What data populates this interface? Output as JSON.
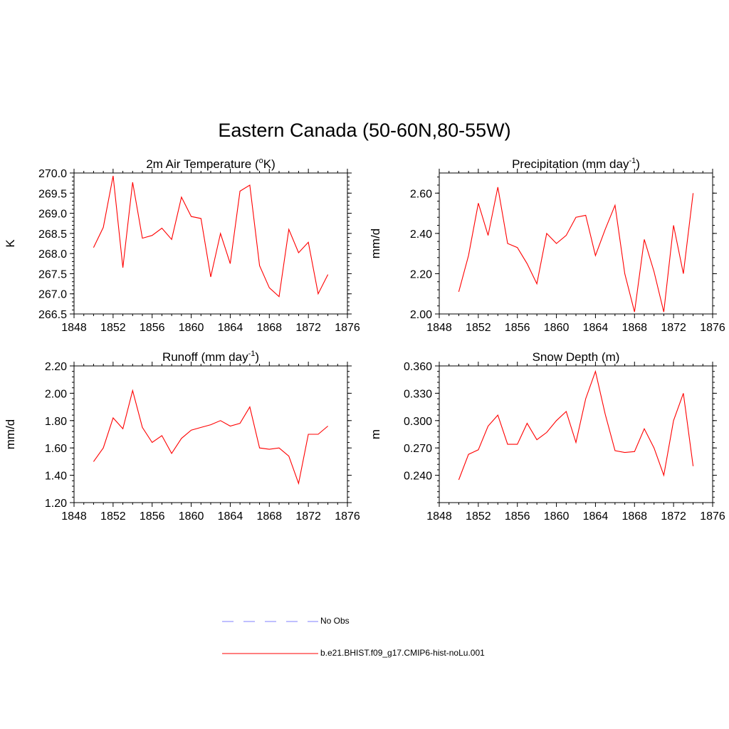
{
  "title": "Eastern Canada (50-60N,80-55W)",
  "colors": {
    "model_line": "#ff0000",
    "obs_line": "#9999ff",
    "axis": "#000000"
  },
  "legend": [
    {
      "label": "No Obs",
      "style": "dashed",
      "color": "#9999ff"
    },
    {
      "label": "b.e21.BHIST.f09_g17.CMIP6-hist-noLu.001",
      "style": "solid",
      "color": "#ff0000"
    }
  ],
  "chart_data": [
    {
      "type": "line",
      "title_main": "2m Air Temperature (",
      "title_sup": "o",
      "title_end": "K)",
      "ylabel": "K",
      "xlim": [
        1848,
        1876
      ],
      "ylim": [
        266.5,
        270.0
      ],
      "xticks": [
        1848,
        1852,
        1856,
        1860,
        1864,
        1868,
        1872,
        1876
      ],
      "yticks": [
        266.5,
        267.0,
        267.5,
        268.0,
        268.5,
        269.0,
        269.5,
        270.0
      ],
      "yticklabels": [
        "266.5",
        "267.0",
        "267.5",
        "268.0",
        "268.5",
        "269.0",
        "269.5",
        "270.0"
      ],
      "x": [
        1850,
        1851,
        1852,
        1853,
        1854,
        1855,
        1856,
        1857,
        1858,
        1859,
        1860,
        1861,
        1862,
        1863,
        1864,
        1865,
        1866,
        1867,
        1868,
        1869,
        1870,
        1871,
        1872,
        1873,
        1874
      ],
      "series": [
        {
          "values": [
            268.15,
            268.65,
            269.93,
            267.65,
            269.77,
            268.38,
            268.45,
            268.63,
            268.35,
            269.4,
            268.92,
            268.87,
            267.42,
            268.5,
            267.75,
            269.55,
            269.7,
            267.7,
            267.15,
            266.93,
            268.6,
            268.02,
            268.28,
            267.0,
            267.48
          ]
        }
      ]
    },
    {
      "type": "line",
      "title_main": "Precipitation (mm day",
      "title_sup": "-1",
      "title_end": ")",
      "ylabel": "mm/d",
      "xlim": [
        1848,
        1876
      ],
      "ylim": [
        2.0,
        2.7
      ],
      "xticks": [
        1848,
        1852,
        1856,
        1860,
        1864,
        1868,
        1872,
        1876
      ],
      "yticks": [
        2.0,
        2.2,
        2.4,
        2.6
      ],
      "yticklabels": [
        "2.00",
        "2.20",
        "2.40",
        "2.60"
      ],
      "x": [
        1850,
        1851,
        1852,
        1853,
        1854,
        1855,
        1856,
        1857,
        1858,
        1859,
        1860,
        1861,
        1862,
        1863,
        1864,
        1865,
        1866,
        1867,
        1868,
        1869,
        1870,
        1871,
        1872,
        1873,
        1874
      ],
      "series": [
        {
          "values": [
            2.11,
            2.29,
            2.55,
            2.39,
            2.63,
            2.35,
            2.33,
            2.25,
            2.15,
            2.4,
            2.35,
            2.39,
            2.48,
            2.49,
            2.29,
            2.42,
            2.54,
            2.2,
            2.01,
            2.37,
            2.21,
            2.01,
            2.44,
            2.2,
            2.6
          ]
        }
      ]
    },
    {
      "type": "line",
      "title_main": "Runoff (mm day",
      "title_sup": "-1",
      "title_end": ")",
      "ylabel": "mm/d",
      "xlim": [
        1848,
        1876
      ],
      "ylim": [
        1.2,
        2.2
      ],
      "xticks": [
        1848,
        1852,
        1856,
        1860,
        1864,
        1868,
        1872,
        1876
      ],
      "yticks": [
        1.2,
        1.4,
        1.6,
        1.8,
        2.0,
        2.2
      ],
      "yticklabels": [
        "1.20",
        "1.40",
        "1.60",
        "1.80",
        "2.00",
        "2.20"
      ],
      "x": [
        1850,
        1851,
        1852,
        1853,
        1854,
        1855,
        1856,
        1857,
        1858,
        1859,
        1860,
        1861,
        1862,
        1863,
        1864,
        1865,
        1866,
        1867,
        1868,
        1869,
        1870,
        1871,
        1872,
        1873,
        1874
      ],
      "series": [
        {
          "values": [
            1.5,
            1.6,
            1.82,
            1.74,
            2.02,
            1.75,
            1.64,
            1.69,
            1.56,
            1.67,
            1.73,
            1.75,
            1.77,
            1.8,
            1.76,
            1.78,
            1.9,
            1.6,
            1.59,
            1.6,
            1.54,
            1.34,
            1.7,
            1.7,
            1.76
          ]
        }
      ]
    },
    {
      "type": "line",
      "title_main": "Snow Depth (m)",
      "title_sup": "",
      "title_end": "",
      "ylabel": "m",
      "xlim": [
        1848,
        1876
      ],
      "ylim": [
        0.21,
        0.36
      ],
      "xticks": [
        1848,
        1852,
        1856,
        1860,
        1864,
        1868,
        1872,
        1876
      ],
      "yticks": [
        0.24,
        0.27,
        0.3,
        0.33,
        0.36
      ],
      "yticklabels": [
        "0.240",
        "0.270",
        "0.300",
        "0.330",
        "0.360"
      ],
      "x": [
        1850,
        1851,
        1852,
        1853,
        1854,
        1855,
        1856,
        1857,
        1858,
        1859,
        1860,
        1861,
        1862,
        1863,
        1864,
        1865,
        1866,
        1867,
        1868,
        1869,
        1870,
        1871,
        1872,
        1873,
        1874
      ],
      "series": [
        {
          "values": [
            0.235,
            0.263,
            0.268,
            0.294,
            0.306,
            0.274,
            0.274,
            0.297,
            0.279,
            0.287,
            0.3,
            0.31,
            0.276,
            0.324,
            0.354,
            0.307,
            0.267,
            0.265,
            0.266,
            0.291,
            0.27,
            0.24,
            0.3,
            0.33,
            0.25
          ]
        }
      ]
    }
  ]
}
